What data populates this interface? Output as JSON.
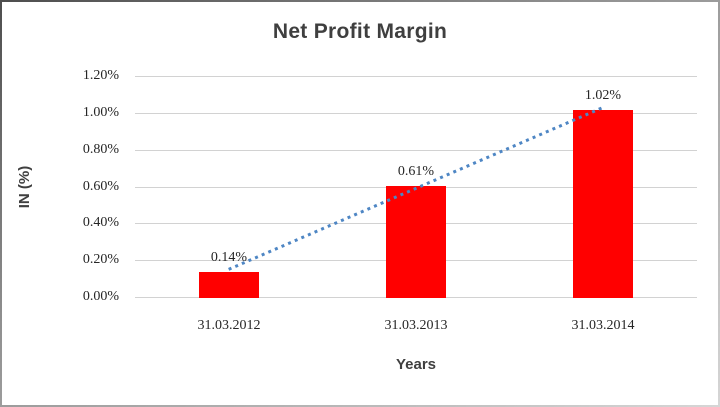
{
  "chart_data": {
    "type": "bar",
    "title": "Net Profit Margin",
    "xlabel": "Years",
    "ylabel": "IN (%)",
    "categories": [
      "31.03.2012",
      "31.03.2013",
      "31.03.2014"
    ],
    "values": [
      0.14,
      0.61,
      1.02
    ],
    "data_labels": [
      "0.14%",
      "0.61%",
      "1.02%"
    ],
    "y_ticks": [
      "1.20%",
      "1.00%",
      "0.80%",
      "0.60%",
      "0.40%",
      "0.20%",
      "0.00%"
    ],
    "ylim": [
      0,
      1.2
    ],
    "grid": true,
    "legend": "none",
    "bar_color": "#ff0000",
    "gridline_color": "#d2d2d2",
    "text_color": "#3f3f3f",
    "trendline": {
      "type": "linear",
      "style": "dotted",
      "color": "#4e86c4",
      "y_start": 0.15,
      "y_end": 1.03
    }
  }
}
